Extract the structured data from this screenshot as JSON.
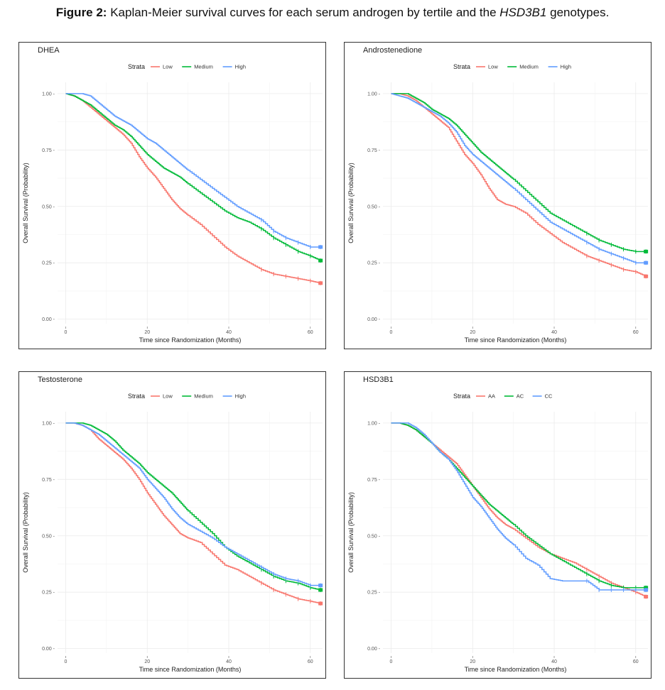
{
  "caption": {
    "label": "Figure 2:",
    "text_pre": " Kaplan-Meier survival curves for each serum androgen by tertile and the ",
    "gene": "HSD3B1",
    "text_post": " genotypes."
  },
  "colors": {
    "red": "#F8766D",
    "green": "#00BA38",
    "blue": "#619CFF"
  },
  "chart_data": [
    {
      "type": "line",
      "title": "DHEA",
      "legend_title": "Strata",
      "xlabel": "Time since Randomization (Months)",
      "ylabel": "Overall Survival (Probability)",
      "xlim": [
        -2,
        63
      ],
      "ylim": [
        -0.02,
        1.05
      ],
      "xticks": [
        0,
        20,
        40,
        60
      ],
      "xtick_labels": [
        "0",
        "20",
        "40",
        "60"
      ],
      "yticks": [
        0,
        0.25,
        0.5,
        0.75,
        1
      ],
      "ytick_labels": [
        "0.00 -",
        "0.25 -",
        "0.50 -",
        "0.75 -",
        "1.00 -"
      ],
      "series": [
        {
          "name": "Low",
          "color": "#F8766D",
          "x": [
            0,
            2,
            4,
            6,
            8,
            10,
            12,
            14,
            16,
            18,
            20,
            22,
            24,
            26,
            28,
            30,
            33,
            36,
            39,
            42,
            45,
            48,
            51,
            54,
            57,
            60,
            62.5
          ],
          "y": [
            1.0,
            0.99,
            0.97,
            0.94,
            0.91,
            0.88,
            0.85,
            0.82,
            0.78,
            0.72,
            0.67,
            0.63,
            0.58,
            0.53,
            0.49,
            0.46,
            0.42,
            0.37,
            0.32,
            0.28,
            0.25,
            0.22,
            0.2,
            0.19,
            0.18,
            0.17,
            0.16
          ]
        },
        {
          "name": "Medium",
          "color": "#00BA38",
          "x": [
            0,
            2,
            4,
            6,
            8,
            10,
            12,
            14,
            16,
            18,
            20,
            22,
            24,
            26,
            28,
            30,
            33,
            36,
            39,
            42,
            45,
            48,
            51,
            54,
            57,
            60,
            62.5
          ],
          "y": [
            1.0,
            0.99,
            0.97,
            0.95,
            0.92,
            0.89,
            0.86,
            0.84,
            0.81,
            0.77,
            0.73,
            0.7,
            0.67,
            0.65,
            0.63,
            0.6,
            0.56,
            0.52,
            0.48,
            0.45,
            0.43,
            0.4,
            0.36,
            0.33,
            0.3,
            0.28,
            0.26
          ]
        },
        {
          "name": "High",
          "color": "#619CFF",
          "x": [
            0,
            2,
            4,
            6,
            8,
            10,
            12,
            14,
            16,
            18,
            20,
            22,
            24,
            26,
            28,
            30,
            33,
            36,
            39,
            42,
            45,
            48,
            51,
            54,
            57,
            60,
            62.5
          ],
          "y": [
            1.0,
            1.0,
            1.0,
            0.99,
            0.96,
            0.93,
            0.9,
            0.88,
            0.86,
            0.83,
            0.8,
            0.78,
            0.75,
            0.72,
            0.69,
            0.66,
            0.62,
            0.58,
            0.54,
            0.5,
            0.47,
            0.44,
            0.39,
            0.36,
            0.34,
            0.32,
            0.32
          ]
        }
      ]
    },
    {
      "type": "line",
      "title": "Androstenedione",
      "legend_title": "Strata",
      "xlabel": "Time since Randomization (Months)",
      "ylabel": "Overall Survival (Probability)",
      "xlim": [
        -2,
        63
      ],
      "ylim": [
        -0.02,
        1.05
      ],
      "xticks": [
        0,
        20,
        40,
        60
      ],
      "xtick_labels": [
        "0",
        "20",
        "40",
        "60"
      ],
      "yticks": [
        0,
        0.25,
        0.5,
        0.75,
        1
      ],
      "ytick_labels": [
        "0.00 -",
        "0.25 -",
        "0.50 -",
        "0.75 -",
        "1.00 -"
      ],
      "series": [
        {
          "name": "Low",
          "color": "#F8766D",
          "x": [
            0,
            2,
            4,
            6,
            8,
            10,
            12,
            14,
            16,
            18,
            20,
            22,
            24,
            26,
            28,
            30,
            33,
            36,
            39,
            42,
            45,
            48,
            51,
            54,
            57,
            60,
            62.5
          ],
          "y": [
            1.0,
            1.0,
            0.99,
            0.97,
            0.94,
            0.91,
            0.88,
            0.85,
            0.79,
            0.73,
            0.69,
            0.64,
            0.58,
            0.53,
            0.51,
            0.5,
            0.47,
            0.42,
            0.38,
            0.34,
            0.31,
            0.28,
            0.26,
            0.24,
            0.22,
            0.21,
            0.19
          ]
        },
        {
          "name": "Medium",
          "color": "#00BA38",
          "x": [
            0,
            2,
            4,
            6,
            8,
            10,
            12,
            14,
            16,
            18,
            20,
            22,
            24,
            26,
            28,
            30,
            33,
            36,
            39,
            42,
            45,
            48,
            51,
            54,
            57,
            60,
            62.5
          ],
          "y": [
            1.0,
            1.0,
            1.0,
            0.98,
            0.96,
            0.93,
            0.91,
            0.89,
            0.86,
            0.82,
            0.78,
            0.74,
            0.71,
            0.68,
            0.65,
            0.62,
            0.57,
            0.52,
            0.47,
            0.44,
            0.41,
            0.38,
            0.35,
            0.33,
            0.31,
            0.3,
            0.3
          ]
        },
        {
          "name": "High",
          "color": "#619CFF",
          "x": [
            0,
            2,
            4,
            6,
            8,
            10,
            12,
            14,
            16,
            18,
            20,
            22,
            24,
            26,
            28,
            30,
            33,
            36,
            39,
            42,
            45,
            48,
            51,
            54,
            57,
            60,
            62.5
          ],
          "y": [
            1.0,
            0.99,
            0.98,
            0.96,
            0.94,
            0.92,
            0.9,
            0.87,
            0.83,
            0.77,
            0.73,
            0.7,
            0.67,
            0.64,
            0.61,
            0.58,
            0.53,
            0.48,
            0.43,
            0.4,
            0.37,
            0.34,
            0.31,
            0.29,
            0.27,
            0.25,
            0.25
          ]
        }
      ]
    },
    {
      "type": "line",
      "title": "Testosterone",
      "legend_title": "Strata",
      "xlabel": "Time since Randomization (Months)",
      "ylabel": "Overall Survival (Probability)",
      "xlim": [
        -2,
        63
      ],
      "ylim": [
        -0.02,
        1.05
      ],
      "xticks": [
        0,
        20,
        40,
        60
      ],
      "xtick_labels": [
        "0",
        "20",
        "40",
        "60"
      ],
      "yticks": [
        0,
        0.25,
        0.5,
        0.75,
        1
      ],
      "ytick_labels": [
        "0.00 -",
        "0.25 -",
        "0.50 -",
        "0.75 -",
        "1.00 -"
      ],
      "series": [
        {
          "name": "Low",
          "color": "#F8766D",
          "x": [
            0,
            2,
            4,
            6,
            8,
            10,
            12,
            14,
            16,
            18,
            20,
            22,
            24,
            26,
            28,
            30,
            33,
            36,
            39,
            42,
            45,
            48,
            51,
            54,
            57,
            60,
            62.5
          ],
          "y": [
            1.0,
            1.0,
            0.99,
            0.97,
            0.93,
            0.9,
            0.87,
            0.84,
            0.8,
            0.75,
            0.69,
            0.64,
            0.59,
            0.55,
            0.51,
            0.49,
            0.47,
            0.42,
            0.37,
            0.35,
            0.32,
            0.29,
            0.26,
            0.24,
            0.22,
            0.21,
            0.2
          ]
        },
        {
          "name": "Medium",
          "color": "#00BA38",
          "x": [
            0,
            2,
            4,
            6,
            8,
            10,
            12,
            14,
            16,
            18,
            20,
            22,
            24,
            26,
            28,
            30,
            33,
            36,
            39,
            42,
            45,
            48,
            51,
            54,
            57,
            60,
            62.5
          ],
          "y": [
            1.0,
            1.0,
            1.0,
            0.99,
            0.97,
            0.95,
            0.92,
            0.88,
            0.85,
            0.82,
            0.78,
            0.75,
            0.72,
            0.69,
            0.65,
            0.61,
            0.56,
            0.51,
            0.45,
            0.41,
            0.38,
            0.35,
            0.32,
            0.3,
            0.29,
            0.27,
            0.26
          ]
        },
        {
          "name": "High",
          "color": "#619CFF",
          "x": [
            0,
            2,
            4,
            6,
            8,
            10,
            12,
            14,
            16,
            18,
            20,
            22,
            24,
            26,
            28,
            30,
            33,
            36,
            39,
            42,
            45,
            48,
            51,
            54,
            57,
            60,
            62.5
          ],
          "y": [
            1.0,
            1.0,
            0.99,
            0.97,
            0.95,
            0.92,
            0.89,
            0.86,
            0.83,
            0.8,
            0.75,
            0.71,
            0.67,
            0.62,
            0.58,
            0.55,
            0.52,
            0.49,
            0.45,
            0.42,
            0.39,
            0.36,
            0.33,
            0.31,
            0.3,
            0.28,
            0.28
          ]
        }
      ]
    },
    {
      "type": "line",
      "title": "HSD3B1",
      "legend_title": "Strata",
      "xlabel": "Time since Randomization (Months)",
      "ylabel": "Overall Survival (Probability)",
      "xlim": [
        -2,
        63
      ],
      "ylim": [
        -0.02,
        1.05
      ],
      "xticks": [
        0,
        20,
        40,
        60
      ],
      "xtick_labels": [
        "0",
        "20",
        "40",
        "60"
      ],
      "yticks": [
        0,
        0.25,
        0.5,
        0.75,
        1
      ],
      "ytick_labels": [
        "0.00 -",
        "0.25 -",
        "0.50 -",
        "0.75 -",
        "1.00 -"
      ],
      "series": [
        {
          "name": "AA",
          "color": "#F8766D",
          "x": [
            0,
            2,
            4,
            6,
            8,
            10,
            12,
            14,
            16,
            18,
            20,
            22,
            24,
            26,
            28,
            30,
            33,
            36,
            39,
            42,
            45,
            48,
            51,
            54,
            57,
            60,
            62.5
          ],
          "y": [
            1.0,
            1.0,
            0.99,
            0.97,
            0.94,
            0.91,
            0.88,
            0.85,
            0.82,
            0.77,
            0.72,
            0.67,
            0.62,
            0.58,
            0.55,
            0.53,
            0.49,
            0.45,
            0.42,
            0.4,
            0.38,
            0.35,
            0.32,
            0.29,
            0.27,
            0.25,
            0.23
          ]
        },
        {
          "name": "AC",
          "color": "#00BA38",
          "x": [
            0,
            2,
            4,
            6,
            8,
            10,
            12,
            14,
            16,
            18,
            20,
            22,
            24,
            26,
            28,
            30,
            33,
            36,
            39,
            42,
            45,
            48,
            51,
            54,
            57,
            60,
            62.5
          ],
          "y": [
            1.0,
            1.0,
            0.99,
            0.97,
            0.94,
            0.91,
            0.87,
            0.84,
            0.8,
            0.76,
            0.72,
            0.68,
            0.64,
            0.61,
            0.58,
            0.55,
            0.5,
            0.46,
            0.42,
            0.39,
            0.36,
            0.33,
            0.3,
            0.28,
            0.27,
            0.27,
            0.27
          ]
        },
        {
          "name": "CC",
          "color": "#619CFF",
          "x": [
            0,
            2,
            4,
            6,
            8,
            10,
            12,
            14,
            16,
            18,
            20,
            22,
            24,
            26,
            28,
            30,
            33,
            36,
            39,
            42,
            45,
            48,
            51,
            54,
            57,
            60,
            62.5
          ],
          "y": [
            1.0,
            1.0,
            1.0,
            0.98,
            0.95,
            0.91,
            0.87,
            0.84,
            0.79,
            0.73,
            0.67,
            0.63,
            0.58,
            0.53,
            0.49,
            0.46,
            0.4,
            0.37,
            0.31,
            0.3,
            0.3,
            0.3,
            0.26,
            0.26,
            0.26,
            0.26,
            0.26
          ]
        }
      ]
    }
  ]
}
